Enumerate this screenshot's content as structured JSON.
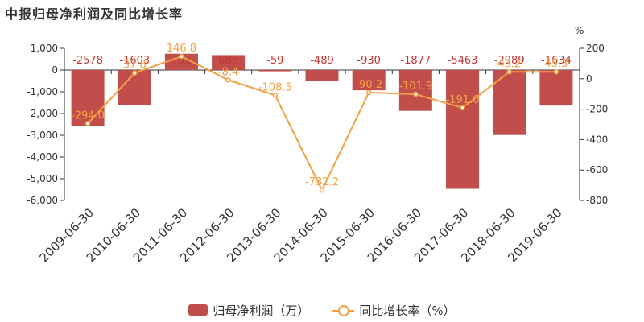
{
  "title": "中报归母净利润及同比增长率",
  "legend": {
    "bar_label": "归母净利润（万）",
    "line_label": "同比增长率（%）"
  },
  "colors": {
    "bar": "#c24e4b",
    "bar_text": "#c23531",
    "line": "#f49f42"
  },
  "chart_data": {
    "type": "bar",
    "categories": [
      "2009-06-30",
      "2010-06-30",
      "2011-06-30",
      "2012-06-30",
      "2013-06-30",
      "2014-06-30",
      "2015-06-30",
      "2016-06-30",
      "2017-06-30",
      "2018-06-30",
      "2019-06-30"
    ],
    "series": [
      {
        "name": "归母净利润（万）",
        "type": "bar",
        "axis": "left",
        "values": [
          -2578,
          -1603,
          751,
          688,
          -59,
          -489,
          -930,
          -1877,
          -5463,
          -2989,
          -1634
        ],
        "labels": [
          "-2578",
          "-1603",
          "751",
          "688",
          "-59",
          "-489",
          "-930",
          "-1877",
          "-5463",
          "-2989",
          "-1634"
        ]
      },
      {
        "name": "同比增长率（%）",
        "type": "line",
        "axis": "right",
        "values": [
          -294.0,
          37.8,
          146.8,
          -8.4,
          -108.5,
          -732.2,
          -90.2,
          -101.9,
          -191.0,
          45.2,
          45.3
        ],
        "labels": [
          "-294.0",
          "37.8",
          "146.8",
          "-8.4",
          "-108.5",
          "-732.2",
          "-90.2",
          "-101.9",
          "-191.0",
          "45.2",
          "45.3"
        ]
      }
    ],
    "y_left": {
      "min": -6000,
      "max": 1000,
      "ticks": [
        1000,
        0,
        -1000,
        -2000,
        -3000,
        -4000,
        -5000,
        -6000
      ],
      "tick_labels": [
        "1,000",
        "0",
        "-1,000",
        "-2,000",
        "-3,000",
        "-4,000",
        "-5,000",
        "-6,000"
      ]
    },
    "y_right": {
      "min": -800,
      "max": 200,
      "unit": "%",
      "ticks": [
        200,
        0,
        -200,
        -400,
        -600,
        -800
      ],
      "tick_labels": [
        "200",
        "0",
        "-200",
        "-400",
        "-600",
        "-800"
      ]
    },
    "grid": false,
    "legend_position": "bottom"
  }
}
